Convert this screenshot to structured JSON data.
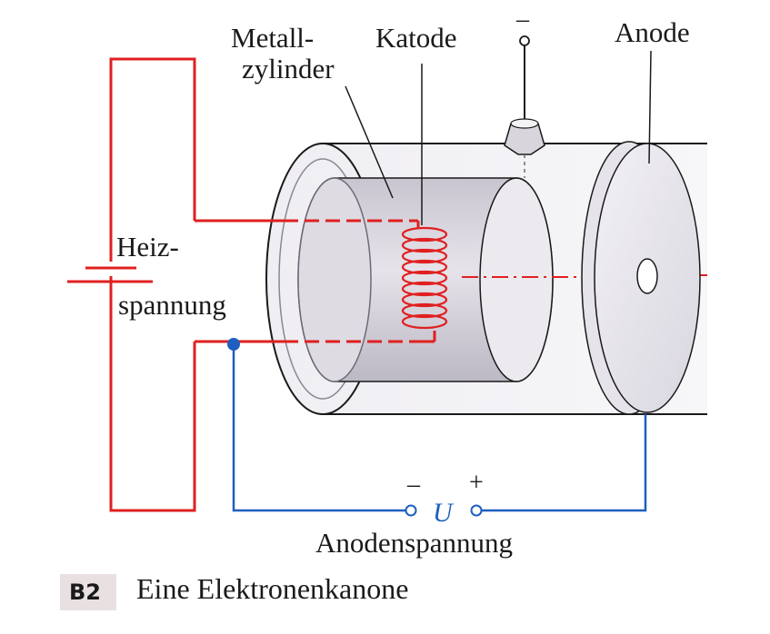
{
  "labels": {
    "metall_line1": "Metall-",
    "metall_line2": "zylinder",
    "katode": "Katode",
    "anode": "Anode",
    "heiz_line1": "Heiz-",
    "heiz_line2": "spannung",
    "minus_top": "–",
    "minus": "–",
    "plus": "+",
    "voltage_symbol": "U",
    "anodenspannung": "Anodenspannung"
  },
  "caption": {
    "badge": "B2",
    "text": "Eine Elektronenkanone"
  },
  "colors": {
    "heater_circuit": "#e02020",
    "anode_circuit": "#1f5fbf",
    "outline": "#1a1a1a",
    "cylinder_fill": "#d4d0da",
    "badge_background": "#e9e1e1"
  }
}
